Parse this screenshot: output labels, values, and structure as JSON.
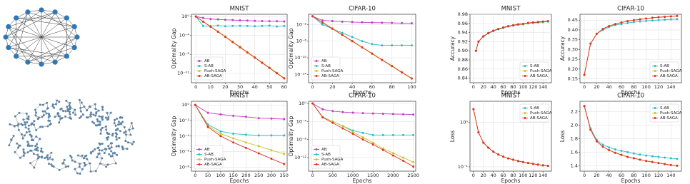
{
  "chart_data": [
    {
      "type": "line",
      "title": "MNIST",
      "x_label": "Epochs",
      "y_label": "Optimality Gap",
      "yscale": "log",
      "grid": true,
      "legend": "lower left",
      "x": [
        0,
        5,
        10,
        15,
        20,
        25,
        30,
        35,
        40,
        45,
        50,
        55,
        60
      ],
      "xlim": [
        -3,
        62
      ],
      "xticks": [
        0,
        10,
        20,
        30,
        40,
        50,
        60
      ],
      "ylim": [
        1e-14,
        3
      ],
      "yticks": [
        {
          "value": 1,
          "label": "10⁰"
        },
        {
          "value": 0.0001,
          "label": "10⁻⁴"
        },
        {
          "value": 1e-08,
          "label": "10⁻⁸"
        },
        {
          "value": 1e-12,
          "label": "10⁻¹²"
        }
      ],
      "series": [
        {
          "name": "AB",
          "color": "#c23bc2",
          "values": [
            1,
            0.5,
            0.3,
            0.25,
            0.2,
            0.18,
            0.15,
            0.14,
            0.12,
            0.11,
            0.1,
            0.1,
            0.09
          ]
        },
        {
          "name": "S-AB",
          "color": "#2bbccc",
          "values": [
            1,
            0.01,
            0.01,
            0.012,
            0.009,
            0.01,
            0.011,
            0.01,
            0.009,
            0.01,
            0.012,
            0.008,
            0.01
          ]
        },
        {
          "name": "Push-SAGA",
          "color": "#c9c42c",
          "values": [
            1,
            0.09,
            0.008,
            0.0007,
            6e-05,
            5e-06,
            4e-07,
            3e-08,
            2.5e-09,
            2e-10,
            1.6e-11,
            1.3e-12,
            1e-13
          ]
        },
        {
          "name": "AB-SAGA",
          "color": "#e2301f",
          "values": [
            1,
            0.08,
            0.007,
            0.0006,
            5e-05,
            4e-06,
            3e-07,
            2.5e-08,
            2e-09,
            1.6e-10,
            1.3e-11,
            1e-12,
            8e-14
          ]
        }
      ]
    },
    {
      "type": "line",
      "title": "CIFAR-10",
      "x_label": "Epochs",
      "y_label": "Optimality Gap",
      "yscale": "log",
      "grid": true,
      "legend": "lower left",
      "x": [
        0,
        10,
        20,
        30,
        40,
        50,
        60,
        70,
        80,
        90,
        100
      ],
      "xlim": [
        -4,
        104
      ],
      "xticks": [
        0,
        20,
        40,
        60,
        80,
        100
      ],
      "ylim": [
        1e-16,
        3
      ],
      "yticks": [
        {
          "value": 0.01,
          "label": "10⁻²"
        },
        {
          "value": 1e-06,
          "label": "10⁻⁶"
        },
        {
          "value": 1e-10,
          "label": "10⁻¹⁰"
        },
        {
          "value": 1e-14,
          "label": "10⁻¹⁴"
        }
      ],
      "series": [
        {
          "name": "AB",
          "color": "#c23bc2",
          "values": [
            1,
            0.1,
            0.07,
            0.05,
            0.04,
            0.035,
            0.03,
            0.028,
            0.025,
            0.022,
            0.02
          ]
        },
        {
          "name": "S-AB",
          "color": "#2bbccc",
          "values": [
            1,
            0.01,
            0.001,
            0.0001,
            1e-05,
            1e-06,
            2e-07,
            1e-07,
            1e-07,
            1e-07,
            1e-07
          ]
        },
        {
          "name": "Push-SAGA",
          "color": "#c9c42c",
          "values": [
            1,
            0.036,
            0.0012,
            3.6e-05,
            1.2e-06,
            3.6e-08,
            1.2e-09,
            3.6e-11,
            1.2e-12,
            3.6e-14,
            1.2e-15
          ]
        },
        {
          "name": "AB-SAGA",
          "color": "#e2301f",
          "values": [
            1,
            0.03,
            0.001,
            3e-05,
            1e-06,
            3e-08,
            1e-09,
            3e-11,
            1e-12,
            3e-14,
            1e-15
          ]
        }
      ]
    },
    {
      "type": "line",
      "title": "MNIST",
      "x_label": "Epochs",
      "y_label": "Optimality Gap",
      "yscale": "log",
      "grid": true,
      "legend": "lower left",
      "x": [
        0,
        50,
        100,
        150,
        200,
        250,
        300,
        350
      ],
      "xlim": [
        -15,
        362
      ],
      "xticks": [
        0,
        50,
        100,
        150,
        200,
        250,
        300,
        350
      ],
      "ylim": [
        3e-09,
        3
      ],
      "yticks": [
        {
          "value": 1,
          "label": "10⁰"
        },
        {
          "value": 0.01,
          "label": "10⁻²"
        },
        {
          "value": 0.0001,
          "label": "10⁻⁴"
        },
        {
          "value": 1e-06,
          "label": "10⁻⁶"
        },
        {
          "value": 1e-08,
          "label": "10⁻⁸"
        }
      ],
      "series": [
        {
          "name": "AB",
          "color": "#c23bc2",
          "values": [
            1,
            0.1,
            0.06,
            0.04,
            0.03,
            0.02,
            0.018,
            0.015
          ]
        },
        {
          "name": "S-AB",
          "color": "#2bbccc",
          "values": [
            1,
            0.003,
            0.0004,
            0.0002,
            0.00015,
            0.00012,
            0.00012,
            0.00012
          ]
        },
        {
          "name": "Push-SAGA",
          "color": "#c9c42c",
          "values": [
            1,
            0.002,
            0.0002,
            5e-05,
            1.5e-05,
            5e-06,
            1.5e-06,
            5e-07
          ]
        },
        {
          "name": "AB-SAGA",
          "color": "#e2301f",
          "values": [
            1,
            0.0015,
            0.0001,
            1.5e-05,
            3e-06,
            6e-07,
            1.2e-07,
            2.5e-08
          ]
        }
      ]
    },
    {
      "type": "line",
      "title": "CIFAR-10",
      "x_label": "Epochs",
      "y_label": "Optimality Gap",
      "yscale": "log",
      "grid": true,
      "legend": "lower left",
      "x": [
        0,
        250,
        500,
        750,
        1000,
        1250,
        1500,
        1750,
        2000,
        2250,
        2500
      ],
      "xlim": [
        -100,
        2560
      ],
      "xticks": [
        0,
        500,
        1000,
        1500,
        2000,
        2500
      ],
      "ylim": [
        1e-15,
        3
      ],
      "yticks": [
        {
          "value": 1,
          "label": "10⁰"
        },
        {
          "value": 0.0001,
          "label": "10⁻⁴"
        },
        {
          "value": 1e-08,
          "label": "10⁻⁸"
        },
        {
          "value": 1e-12,
          "label": "10⁻¹²"
        }
      ],
      "series": [
        {
          "name": "AB",
          "color": "#c23bc2",
          "values": [
            1,
            0.05,
            0.02,
            0.012,
            0.009,
            0.007,
            0.006,
            0.005,
            0.0045,
            0.004,
            0.0035
          ]
        },
        {
          "name": "S-AB",
          "color": "#2bbccc",
          "values": [
            1,
            0.001,
            0.0001,
            1e-05,
            1e-06,
            3e-07,
            1e-07,
            1e-07,
            1e-07,
            1e-07,
            1e-07
          ]
        },
        {
          "name": "Push-SAGA",
          "color": "#c9c42c",
          "values": [
            1,
            0.001,
            0.0001,
            1e-05,
            5e-07,
            3e-08,
            2e-09,
            1e-10,
            1e-11,
            1e-12,
            1e-13
          ]
        },
        {
          "name": "AB-SAGA",
          "color": "#e2301f",
          "values": [
            1,
            0.0008,
            5e-05,
            3e-06,
            2e-07,
            1e-08,
            8e-10,
            5e-11,
            3e-12,
            2e-13,
            1e-14
          ]
        }
      ]
    },
    {
      "type": "line",
      "title": "MNIST",
      "x_label": "Epochs",
      "y_label": "Accuracy",
      "yscale": "linear",
      "grid": true,
      "legend": "lower right",
      "x": [
        5,
        10,
        20,
        30,
        40,
        50,
        60,
        70,
        80,
        90,
        100,
        110,
        120,
        130,
        140,
        150
      ],
      "xlim": [
        -7,
        157
      ],
      "xticks": [
        0,
        20,
        40,
        60,
        80,
        100,
        120,
        140
      ],
      "ylim": [
        0.83,
        0.98
      ],
      "yticks": [
        0.84,
        0.86,
        0.88,
        {
          "value": 0.9,
          "label": "0.90"
        },
        0.92,
        0.94,
        0.96,
        0.98
      ],
      "series": [
        {
          "name": "S-AB",
          "color": "#2bbccc",
          "values": [
            0.9,
            0.92,
            0.931,
            0.938,
            0.943,
            0.947,
            0.95,
            0.953,
            0.955,
            0.957,
            0.958,
            0.96,
            0.961,
            0.962,
            0.963,
            0.964
          ]
        },
        {
          "name": "Push-SAGA",
          "color": "#c9c42c",
          "values": [
            0.9,
            0.92,
            0.932,
            0.939,
            0.944,
            0.948,
            0.951,
            0.954,
            0.956,
            0.958,
            0.959,
            0.961,
            0.962,
            0.963,
            0.964,
            0.965
          ]
        },
        {
          "name": "AB-SAGA",
          "color": "#e2301f",
          "values": [
            0.9,
            0.92,
            0.932,
            0.939,
            0.944,
            0.948,
            0.951,
            0.954,
            0.956,
            0.958,
            0.959,
            0.961,
            0.962,
            0.963,
            0.964,
            0.965
          ]
        }
      ]
    },
    {
      "type": "line",
      "title": "CIFAR-10",
      "x_label": "Epochs",
      "y_label": "Accuracy",
      "yscale": "linear",
      "grid": true,
      "legend": "lower right",
      "x": [
        0,
        10,
        20,
        30,
        40,
        50,
        60,
        70,
        80,
        90,
        100,
        110,
        120,
        130,
        140,
        150
      ],
      "xlim": [
        -7,
        157
      ],
      "xticks": [
        0,
        20,
        40,
        60,
        80,
        100,
        120,
        140
      ],
      "ylim": [
        0.13,
        0.48
      ],
      "yticks": [
        0.15,
        {
          "value": 0.2,
          "label": "0.20"
        },
        0.25,
        {
          "value": 0.3,
          "label": "0.30"
        },
        0.35,
        {
          "value": 0.4,
          "label": "0.40"
        },
        0.45
      ],
      "series": [
        {
          "name": "S-AB",
          "color": "#2bbccc",
          "values": [
            0.17,
            0.33,
            0.38,
            0.4,
            0.415,
            0.425,
            0.43,
            0.435,
            0.44,
            0.443,
            0.446,
            0.448,
            0.45,
            0.452,
            0.454,
            0.455
          ]
        },
        {
          "name": "Push-SAGA",
          "color": "#c9c42c",
          "values": [
            0.17,
            0.33,
            0.38,
            0.405,
            0.42,
            0.43,
            0.438,
            0.445,
            0.45,
            0.454,
            0.458,
            0.462,
            0.465,
            0.467,
            0.469,
            0.471
          ]
        },
        {
          "name": "AB-SAGA",
          "color": "#e2301f",
          "values": [
            0.17,
            0.33,
            0.38,
            0.405,
            0.42,
            0.43,
            0.438,
            0.445,
            0.45,
            0.454,
            0.458,
            0.462,
            0.465,
            0.467,
            0.469,
            0.472
          ]
        }
      ]
    },
    {
      "type": "line",
      "title": "MNIST",
      "x_label": "Epochs",
      "y_label": "Loss",
      "yscale": "log",
      "grid": true,
      "legend": "upper right",
      "x": [
        0,
        10,
        20,
        30,
        40,
        50,
        60,
        70,
        80,
        90,
        100,
        110,
        120,
        130,
        140,
        150
      ],
      "xlim": [
        -7,
        157
      ],
      "xticks": [
        0,
        20,
        40,
        60,
        80,
        100,
        120,
        140
      ],
      "ylim": [
        0.08,
        3
      ],
      "yticks": [
        {
          "value": 0.1,
          "label": "10⁻¹"
        },
        {
          "value": 1,
          "label": "10⁰"
        }
      ],
      "series": [
        {
          "name": "S-AB",
          "color": "#2bbccc",
          "values": [
            2,
            0.6,
            0.35,
            0.27,
            0.22,
            0.19,
            0.17,
            0.155,
            0.145,
            0.136,
            0.129,
            0.123,
            0.118,
            0.113,
            0.109,
            0.106
          ]
        },
        {
          "name": "Push-SAGA",
          "color": "#c9c42c",
          "values": [
            2,
            0.6,
            0.35,
            0.27,
            0.22,
            0.19,
            0.17,
            0.155,
            0.145,
            0.135,
            0.128,
            0.122,
            0.117,
            0.112,
            0.108,
            0.105
          ]
        },
        {
          "name": "AB-SAGA",
          "color": "#e2301f",
          "values": [
            2,
            0.6,
            0.35,
            0.27,
            0.22,
            0.19,
            0.17,
            0.155,
            0.145,
            0.135,
            0.128,
            0.122,
            0.117,
            0.112,
            0.108,
            0.105
          ]
        }
      ]
    },
    {
      "type": "line",
      "title": "CIFAR-10",
      "x_label": "Epochs",
      "y_label": "Loss",
      "yscale": "linear",
      "grid": true,
      "legend": "upper right",
      "x": [
        0,
        10,
        20,
        30,
        40,
        50,
        60,
        70,
        80,
        90,
        100,
        110,
        120,
        130,
        140,
        150
      ],
      "xlim": [
        -7,
        157
      ],
      "xticks": [
        0,
        20,
        40,
        60,
        80,
        100,
        120,
        140
      ],
      "ylim": [
        1.32,
        2.35
      ],
      "yticks": [
        1.4,
        1.6,
        1.8,
        {
          "value": 2,
          "label": "2.0"
        },
        2.2
      ],
      "series": [
        {
          "name": "S-AB",
          "color": "#2bbccc",
          "values": [
            2.28,
            1.95,
            1.78,
            1.71,
            1.67,
            1.64,
            1.62,
            1.6,
            1.58,
            1.565,
            1.55,
            1.54,
            1.53,
            1.52,
            1.51,
            1.5
          ]
        },
        {
          "name": "Push-SAGA",
          "color": "#c9c42c",
          "values": [
            2.28,
            1.93,
            1.76,
            1.68,
            1.63,
            1.59,
            1.56,
            1.53,
            1.51,
            1.49,
            1.47,
            1.455,
            1.44,
            1.425,
            1.41,
            1.4
          ]
        },
        {
          "name": "AB-SAGA",
          "color": "#e2301f",
          "values": [
            2.28,
            1.93,
            1.76,
            1.68,
            1.63,
            1.59,
            1.56,
            1.53,
            1.51,
            1.49,
            1.47,
            1.455,
            1.44,
            1.425,
            1.41,
            1.4
          ]
        }
      ]
    }
  ]
}
